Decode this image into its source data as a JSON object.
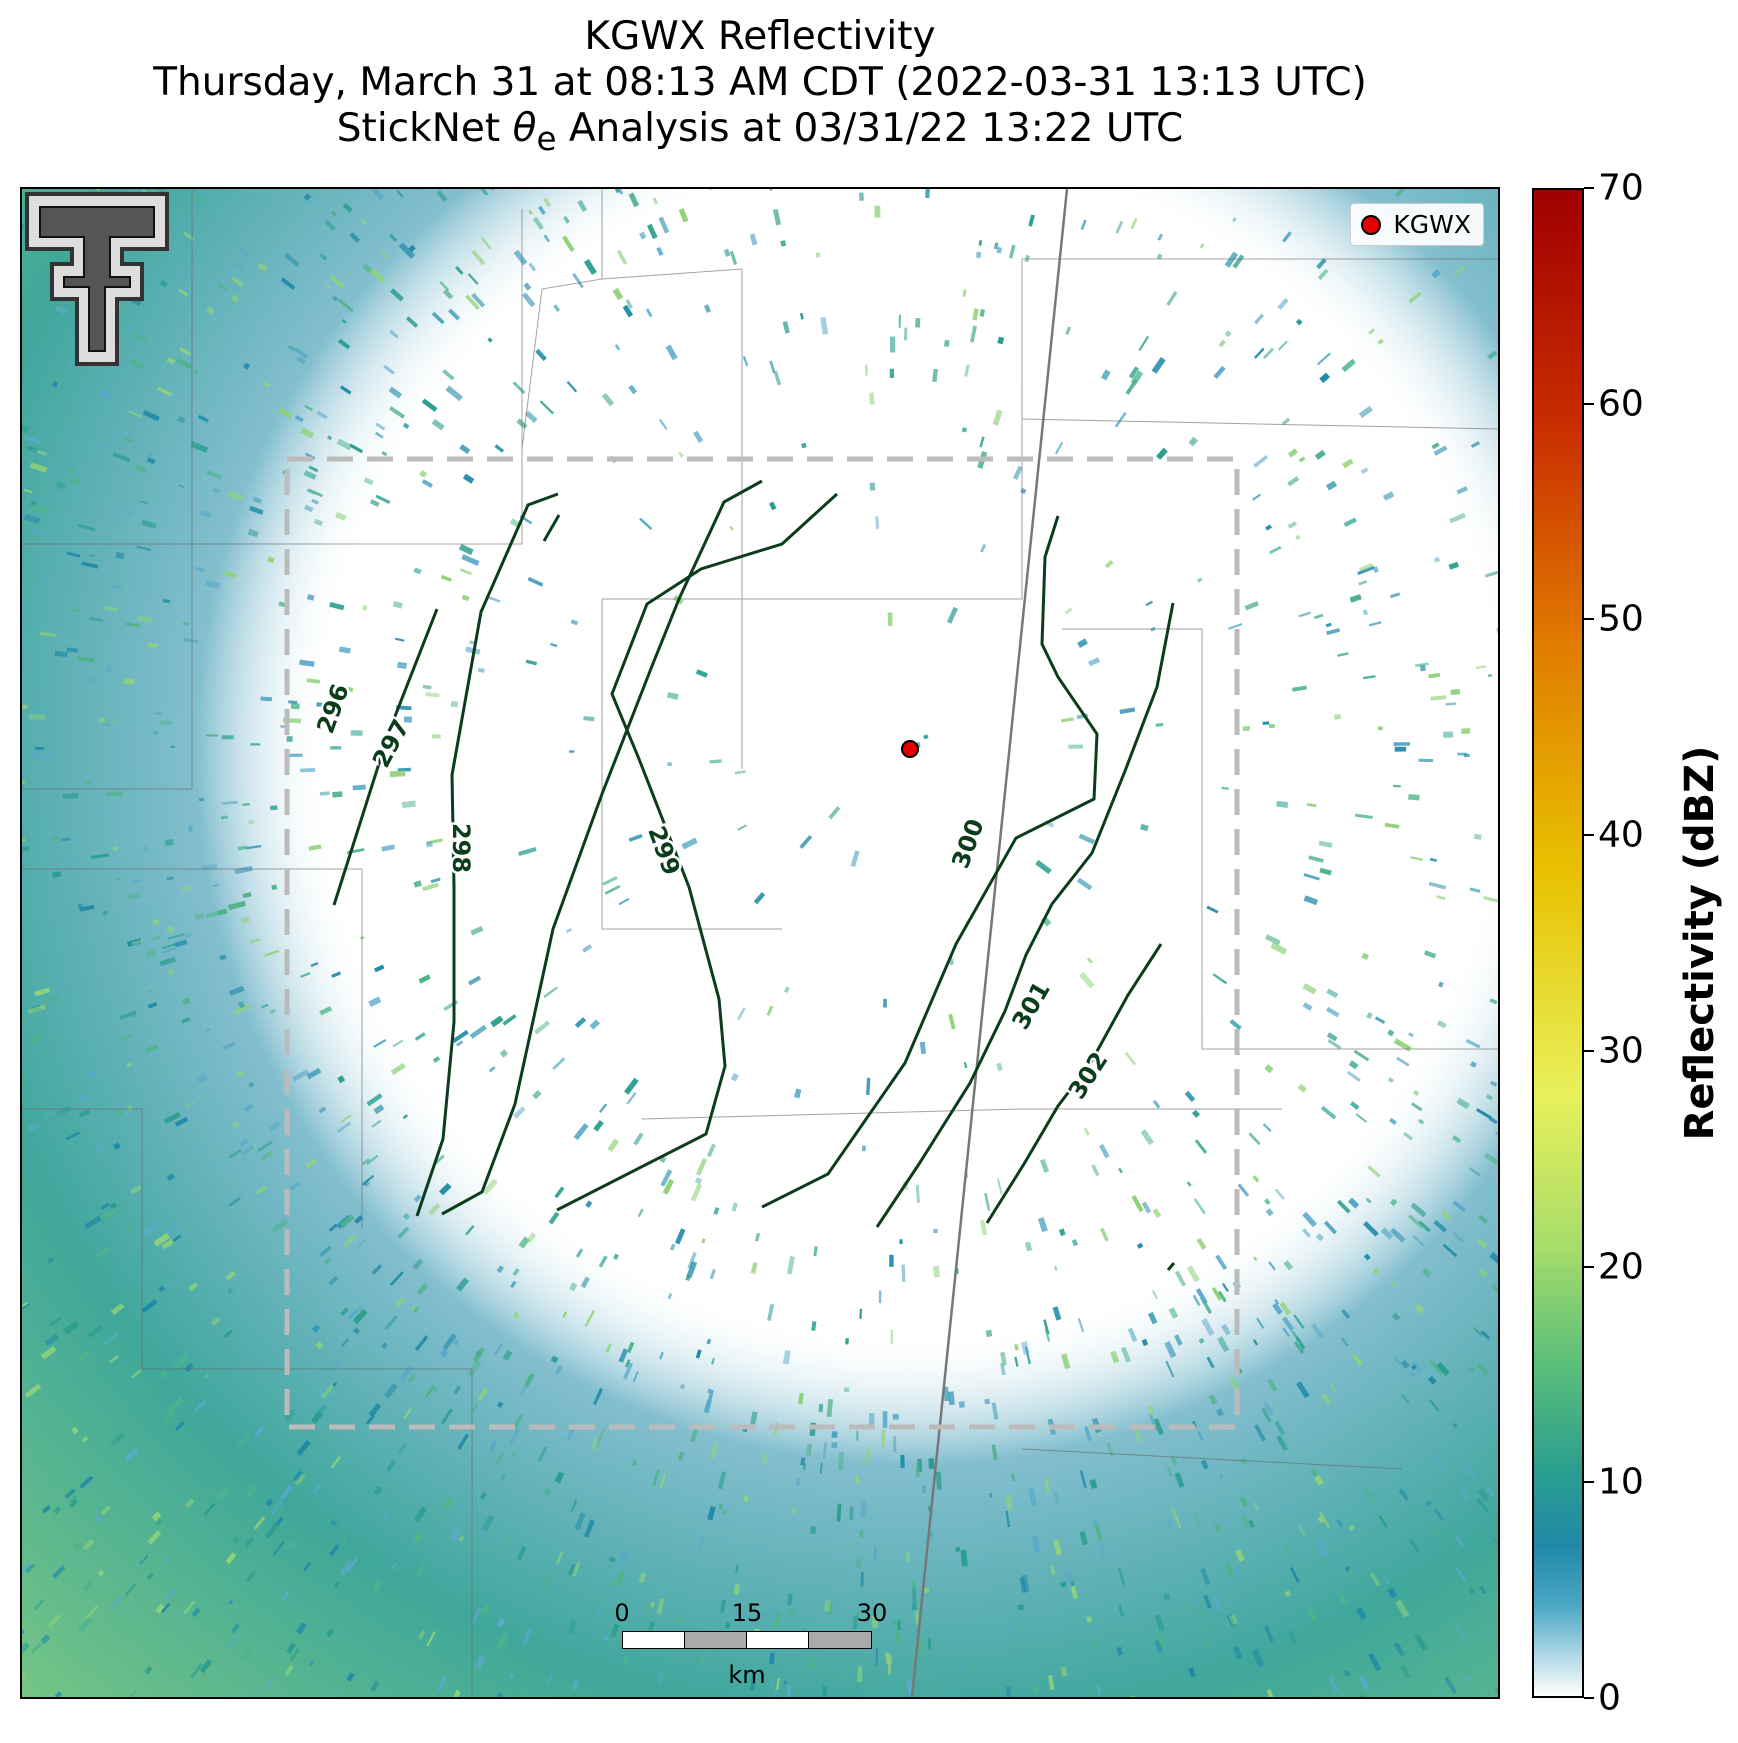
{
  "title": {
    "line1": "KGWX Reflectivity",
    "line2": "Thursday, March 31 at 08:13 AM CDT (2022-03-31 13:13 UTC)",
    "line3_prefix": "StickNet ",
    "line3_symbol": "θ",
    "line3_subscript": "e",
    "line3_suffix": " Analysis at 03/31/22 13:22 UTC"
  },
  "legend": {
    "label": "KGWX",
    "marker_color": "#e50000"
  },
  "contour_labels": [
    "296",
    "297",
    "298",
    "299",
    "300",
    "301",
    "302"
  ],
  "contour_color": "#0b3d1c",
  "scale_bar": {
    "ticks": [
      "0",
      "15",
      "30"
    ],
    "unit": "km"
  },
  "colorbar": {
    "label": "Reflectivity (dBZ)",
    "ticks": [
      "0",
      "10",
      "20",
      "30",
      "40",
      "50",
      "60",
      "70"
    ],
    "min": 0,
    "max": 70
  },
  "colors": {
    "reflectivity_low": "#1f8aa8",
    "reflectivity_mid": "#2a9e8f",
    "reflectivity_high": "#a8dd6a",
    "domain_box": "#bbbbbb"
  },
  "icons": {
    "logo": "texas-tech-double-t-logo"
  }
}
